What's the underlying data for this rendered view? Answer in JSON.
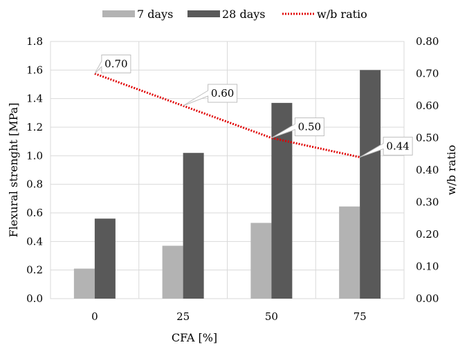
{
  "chart_data": {
    "type": "bar",
    "categories": [
      "0",
      "25",
      "50",
      "75"
    ],
    "series": [
      {
        "name": "7 days",
        "type": "bar",
        "axis": "left",
        "color": "#b3b3b3",
        "values": [
          0.21,
          0.37,
          0.53,
          0.645
        ]
      },
      {
        "name": "28 days",
        "type": "bar",
        "axis": "left",
        "color": "#595959",
        "values": [
          0.56,
          1.02,
          1.37,
          1.6
        ]
      },
      {
        "name": "w/b ratio",
        "type": "line",
        "axis": "right",
        "color": "#e00000",
        "style": "dotted",
        "values": [
          0.7,
          0.6,
          0.5,
          0.44
        ],
        "labels": [
          "0.70",
          "0.60",
          "0.50",
          "0.44"
        ]
      }
    ],
    "xlabel": "CFA [%]",
    "ylabel": "Flexural strenght [MPa]",
    "y2label": "w/b ratio",
    "ylim": [
      0,
      1.8
    ],
    "y2lim": [
      0,
      0.8
    ],
    "yticks": [
      "0.0",
      "0.2",
      "0.4",
      "0.6",
      "0.8",
      "1.0",
      "1.2",
      "1.4",
      "1.6",
      "1.8"
    ],
    "y2ticks": [
      "0.00",
      "0.10",
      "0.20",
      "0.30",
      "0.40",
      "0.50",
      "0.60",
      "0.70",
      "0.80"
    ],
    "grid": true,
    "legend": "top"
  }
}
